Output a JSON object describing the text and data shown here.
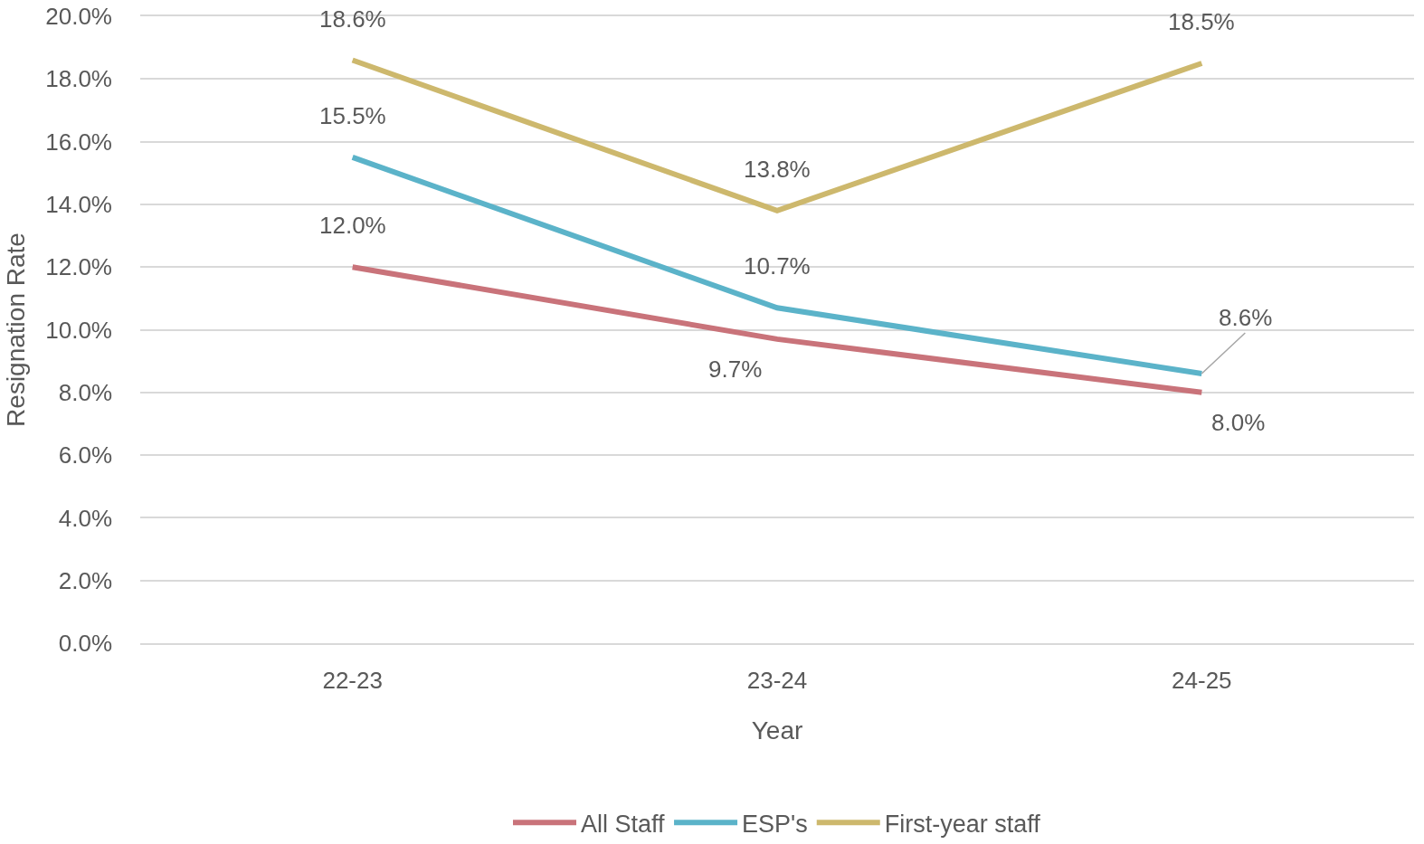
{
  "chart_data": {
    "type": "line",
    "xlabel": "Year",
    "ylabel": "Resignation Rate",
    "categories": [
      "22-23",
      "23-24",
      "24-25"
    ],
    "series": [
      {
        "name": "All Staff",
        "color": "#c9737a",
        "values": [
          12.0,
          9.7,
          8.0
        ],
        "value_labels": [
          "12.0%",
          "9.7%",
          "8.0%"
        ]
      },
      {
        "name": "ESP's",
        "color": "#5bb3c9",
        "values": [
          15.5,
          10.7,
          8.6
        ],
        "value_labels": [
          "15.5%",
          "10.7%",
          "8.6%"
        ]
      },
      {
        "name": "First-year staff",
        "color": "#cdb86d",
        "values": [
          18.6,
          13.8,
          18.5
        ],
        "value_labels": [
          "18.6%",
          "13.8%",
          "18.5%"
        ]
      }
    ],
    "ylim": [
      0,
      20
    ],
    "yticks": [
      {
        "value": 0,
        "label": "0.0%"
      },
      {
        "value": 2,
        "label": "2.0%"
      },
      {
        "value": 4,
        "label": "4.0%"
      },
      {
        "value": 6,
        "label": "6.0%"
      },
      {
        "value": 8,
        "label": "8.0%"
      },
      {
        "value": 10,
        "label": "10.0%"
      },
      {
        "value": 12,
        "label": "12.0%"
      },
      {
        "value": 14,
        "label": "14.0%"
      },
      {
        "value": 16,
        "label": "16.0%"
      },
      {
        "value": 18,
        "label": "18.0%"
      },
      {
        "value": 20,
        "label": "20.0%"
      }
    ],
    "grid": "y",
    "legend": "bottom",
    "line_style": "solid"
  }
}
